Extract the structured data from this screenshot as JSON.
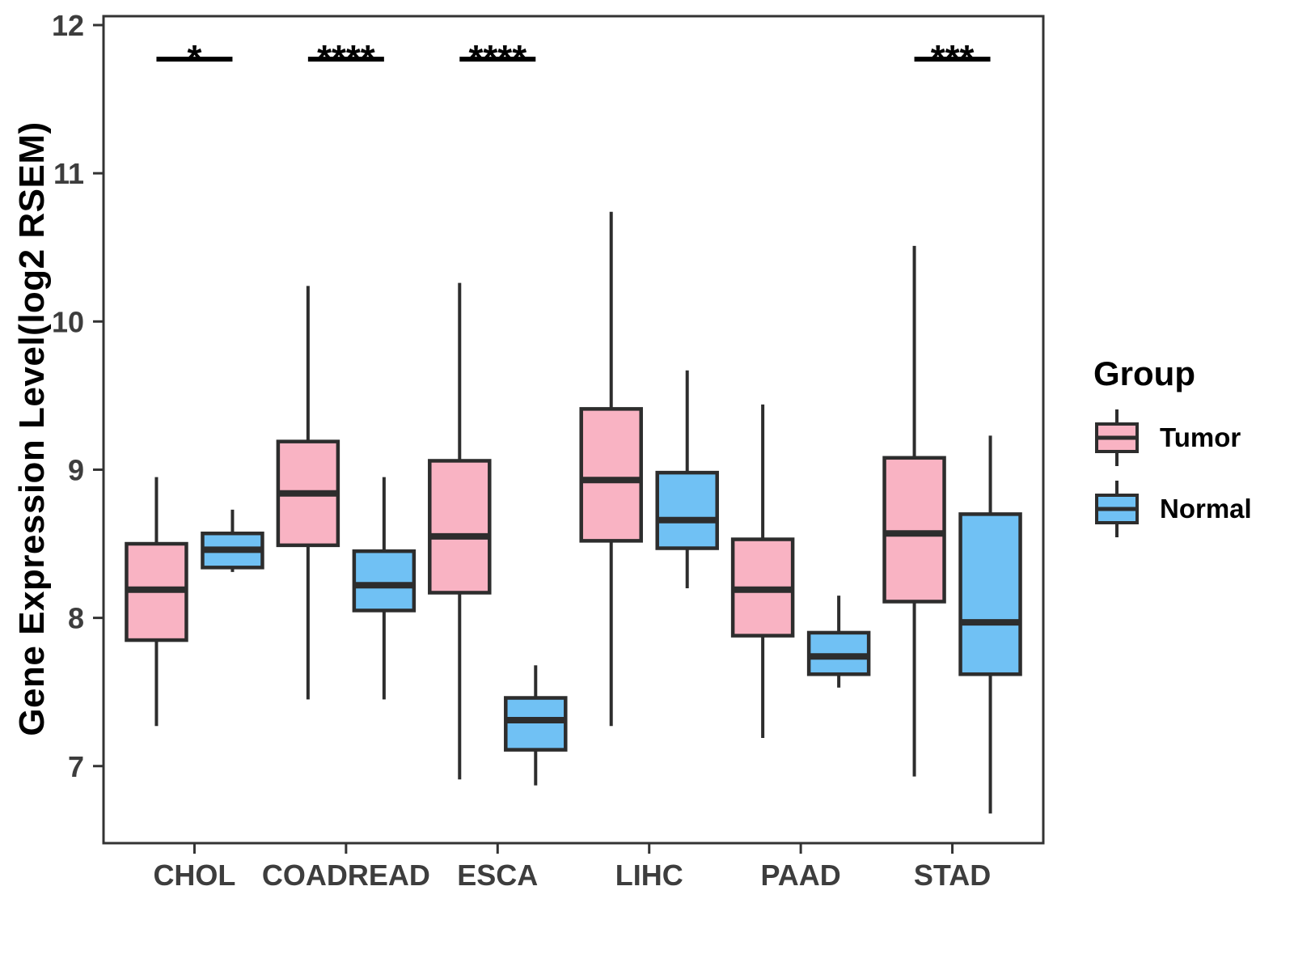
{
  "chart_data": {
    "type": "boxplot",
    "title": "",
    "xlabel": "",
    "ylabel": "Gene Expression Level(log2 RSEM)",
    "ylim": [
      6.48,
      12.06
    ],
    "yticks": [
      12,
      11,
      10,
      9,
      8,
      7
    ],
    "grid": "off",
    "categories": [
      "CHOL",
      "COADREAD",
      "ESCA",
      "LIHC",
      "PAAD",
      "STAD"
    ],
    "series": [
      {
        "name": "Tumor",
        "color": "#F9B3C3",
        "boxes": [
          {
            "category": "CHOL",
            "min": 7.27,
            "q1": 7.85,
            "median": 8.19,
            "q3": 8.5,
            "max": 8.95
          },
          {
            "category": "COADREAD",
            "min": 7.45,
            "q1": 8.49,
            "median": 8.84,
            "q3": 9.19,
            "max": 10.24
          },
          {
            "category": "ESCA",
            "min": 6.91,
            "q1": 8.17,
            "median": 8.55,
            "q3": 9.06,
            "max": 10.26
          },
          {
            "category": "LIHC",
            "min": 7.27,
            "q1": 8.52,
            "median": 8.93,
            "q3": 9.41,
            "max": 10.74
          },
          {
            "category": "PAAD",
            "min": 7.19,
            "q1": 7.88,
            "median": 8.19,
            "q3": 8.53,
            "max": 9.44
          },
          {
            "category": "STAD",
            "min": 6.93,
            "q1": 8.11,
            "median": 8.57,
            "q3": 9.08,
            "max": 10.51
          }
        ]
      },
      {
        "name": "Normal",
        "color": "#70C1F4",
        "boxes": [
          {
            "category": "CHOL",
            "min": 8.31,
            "q1": 8.34,
            "median": 8.46,
            "q3": 8.57,
            "max": 8.73
          },
          {
            "category": "COADREAD",
            "min": 7.45,
            "q1": 8.05,
            "median": 8.22,
            "q3": 8.45,
            "max": 8.95
          },
          {
            "category": "ESCA",
            "min": 6.87,
            "q1": 7.11,
            "median": 7.31,
            "q3": 7.46,
            "max": 7.68
          },
          {
            "category": "LIHC",
            "min": 8.2,
            "q1": 8.47,
            "median": 8.66,
            "q3": 8.98,
            "max": 9.67
          },
          {
            "category": "PAAD",
            "min": 7.53,
            "q1": 7.62,
            "median": 7.74,
            "q3": 7.9,
            "max": 8.15
          },
          {
            "category": "STAD",
            "min": 6.68,
            "q1": 7.62,
            "median": 7.97,
            "q3": 8.7,
            "max": 9.23
          }
        ]
      }
    ],
    "significance": [
      {
        "category": "CHOL",
        "stars": "*"
      },
      {
        "category": "COADREAD",
        "stars": "****"
      },
      {
        "category": "ESCA",
        "stars": "****"
      },
      {
        "category": "STAD",
        "stars": "***"
      }
    ],
    "significance_bar_value": 11.77,
    "legend": {
      "title": "Group",
      "position": "right",
      "entries": [
        "Tumor",
        "Normal"
      ]
    },
    "stroke_color": "#2d2d2d",
    "axis_color": "#333333",
    "tick_label_color": "#3d3d3d"
  }
}
